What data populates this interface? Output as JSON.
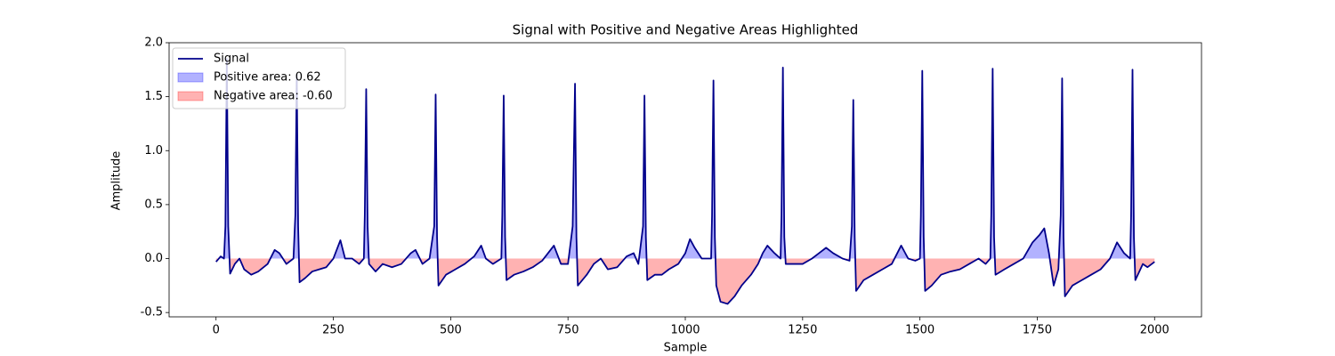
{
  "chart_data": {
    "type": "line",
    "title": "Signal with Positive and Negative Areas Highlighted",
    "x_label": "Sample",
    "y_label": "Amplitude",
    "xlim": [
      -100,
      2100
    ],
    "ylim": [
      -0.54,
      2.0
    ],
    "xticks": [
      0,
      250,
      500,
      750,
      1000,
      1250,
      1500,
      1750,
      2000
    ],
    "yticks": [
      {
        "value": -0.5,
        "label": "-0.5"
      },
      {
        "value": 0,
        "label": "0.0"
      },
      0.5,
      {
        "value": 1,
        "label": "1.0"
      },
      1.5,
      {
        "value": 2,
        "label": "2.0"
      }
    ],
    "legend": "upper left",
    "x": [
      0,
      10,
      17,
      20,
      23,
      26,
      30,
      40,
      50,
      60,
      75,
      90,
      110,
      125,
      135,
      150,
      165,
      169,
      172,
      175,
      178,
      190,
      205,
      220,
      235,
      250,
      265,
      275,
      290,
      305,
      315,
      317,
      320,
      323,
      326,
      340,
      355,
      375,
      395,
      415,
      425,
      440,
      455,
      465,
      468,
      471,
      474,
      490,
      510,
      530,
      550,
      565,
      575,
      590,
      608,
      610,
      613,
      616,
      619,
      635,
      655,
      675,
      695,
      720,
      735,
      750,
      760,
      765,
      768,
      771,
      790,
      805,
      820,
      835,
      855,
      875,
      890,
      900,
      910,
      913,
      916,
      919,
      935,
      950,
      965,
      985,
      1000,
      1010,
      1020,
      1035,
      1055,
      1057,
      1060,
      1063,
      1066,
      1075,
      1090,
      1105,
      1120,
      1140,
      1155,
      1165,
      1175,
      1190,
      1203,
      1205,
      1208,
      1211,
      1214,
      1230,
      1250,
      1270,
      1285,
      1300,
      1315,
      1335,
      1350,
      1355,
      1358,
      1361,
      1364,
      1380,
      1400,
      1420,
      1440,
      1460,
      1475,
      1490,
      1500,
      1502,
      1505,
      1508,
      1511,
      1525,
      1545,
      1565,
      1585,
      1605,
      1625,
      1640,
      1650,
      1652,
      1655,
      1658,
      1661,
      1680,
      1700,
      1720,
      1740,
      1755,
      1765,
      1775,
      1785,
      1795,
      1800,
      1803,
      1806,
      1809,
      1825,
      1845,
      1865,
      1885,
      1905,
      1920,
      1935,
      1948,
      1950,
      1953,
      1956,
      1959,
      1975,
      1985,
      2000
    ],
    "series": [
      {
        "name": "Signal",
        "color": "#00008b",
        "values": [
          -0.03,
          0.02,
          0.0,
          0.3,
          1.85,
          0.3,
          -0.14,
          -0.05,
          0.0,
          -0.1,
          -0.15,
          -0.12,
          -0.05,
          0.08,
          0.05,
          -0.05,
          0.0,
          0.4,
          1.7,
          0.3,
          -0.22,
          -0.18,
          -0.12,
          -0.1,
          -0.08,
          0.0,
          0.17,
          0.0,
          0.0,
          -0.05,
          0.0,
          0.4,
          1.57,
          0.3,
          -0.05,
          -0.12,
          -0.05,
          -0.08,
          -0.05,
          0.05,
          0.08,
          -0.05,
          0.0,
          0.3,
          1.52,
          0.2,
          -0.25,
          -0.15,
          -0.1,
          -0.05,
          0.02,
          0.12,
          0.0,
          -0.05,
          0.0,
          0.4,
          1.51,
          0.2,
          -0.2,
          -0.15,
          -0.12,
          -0.08,
          -0.02,
          0.12,
          -0.05,
          -0.05,
          0.3,
          1.62,
          0.2,
          -0.25,
          -0.15,
          -0.05,
          0.0,
          -0.1,
          -0.08,
          0.02,
          0.05,
          -0.05,
          0.3,
          1.51,
          0.2,
          -0.2,
          -0.15,
          -0.15,
          -0.1,
          -0.05,
          0.05,
          0.18,
          0.1,
          0.0,
          0.0,
          0.4,
          1.65,
          0.2,
          -0.25,
          -0.4,
          -0.42,
          -0.35,
          -0.25,
          -0.15,
          -0.05,
          0.05,
          0.12,
          0.05,
          0.0,
          0.4,
          1.77,
          0.2,
          -0.05,
          -0.05,
          -0.05,
          0.0,
          0.05,
          0.1,
          0.05,
          0.0,
          -0.02,
          0.3,
          1.47,
          0.2,
          -0.3,
          -0.2,
          -0.15,
          -0.1,
          -0.05,
          0.12,
          0.0,
          -0.02,
          0.0,
          0.4,
          1.74,
          0.2,
          -0.3,
          -0.25,
          -0.15,
          -0.12,
          -0.1,
          -0.05,
          0.0,
          -0.05,
          0.0,
          0.4,
          1.76,
          0.2,
          -0.15,
          -0.1,
          -0.05,
          0.0,
          0.15,
          0.22,
          0.28,
          0.05,
          -0.25,
          -0.1,
          0.4,
          1.67,
          0.2,
          -0.35,
          -0.25,
          -0.2,
          -0.15,
          -0.1,
          0.0,
          0.15,
          0.05,
          0.0,
          0.4,
          1.75,
          0.2,
          -0.2,
          -0.05,
          -0.08,
          -0.03
        ]
      }
    ],
    "fills": [
      {
        "name": "Positive area: 0.62",
        "color": "#0000ff",
        "opacity": 0.3,
        "side": "positive"
      },
      {
        "name": "Negative area: -0.60",
        "color": "#ff0000",
        "opacity": 0.3,
        "side": "negative"
      }
    ]
  }
}
